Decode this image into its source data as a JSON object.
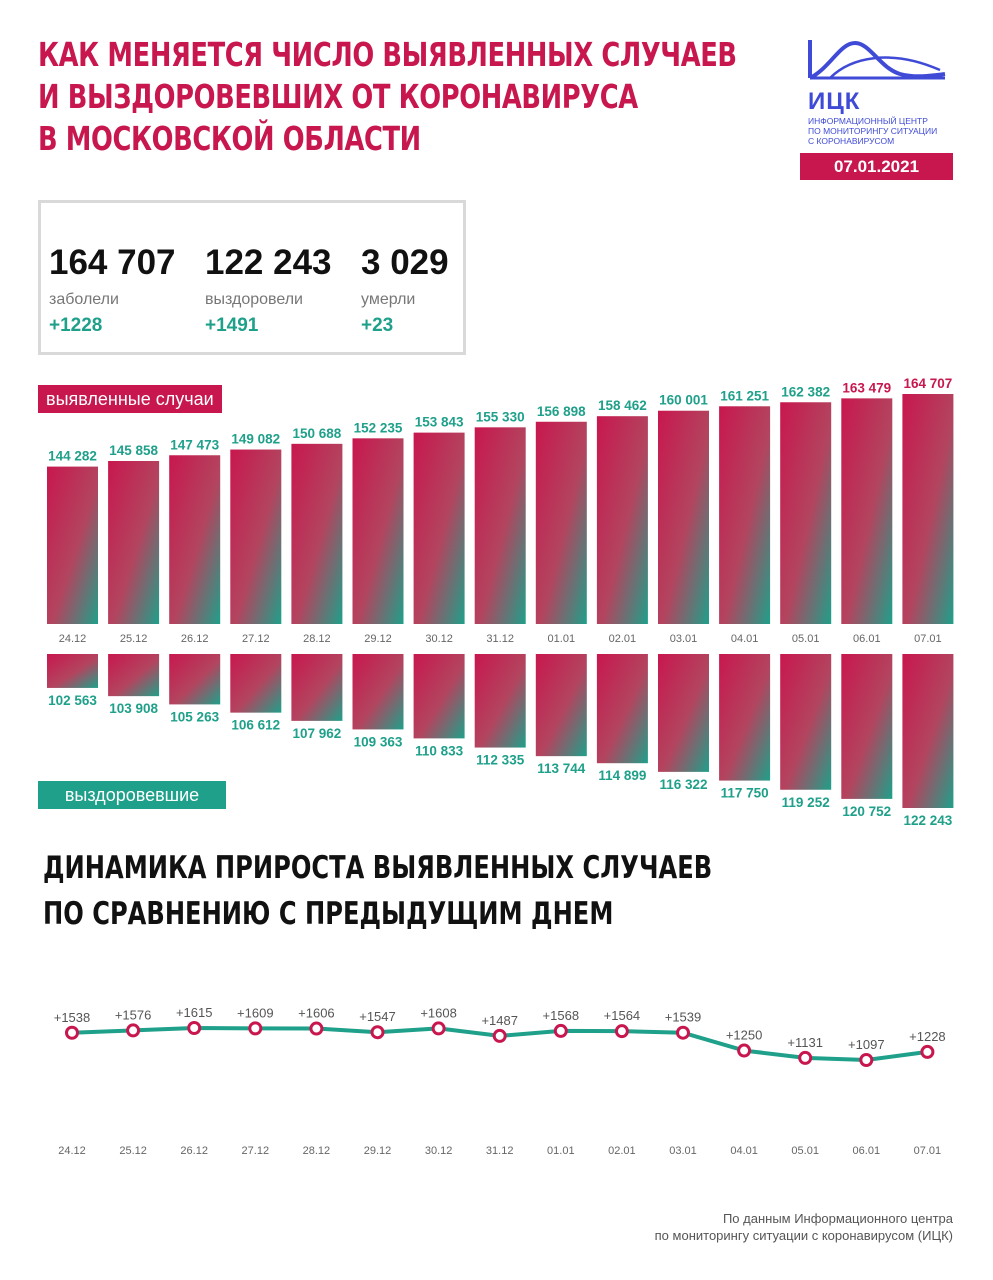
{
  "title": {
    "line1": "КАК МЕНЯЕТСЯ ЧИСЛО ВЫЯВЛЕННЫХ СЛУЧАЕВ",
    "line2": "И ВЫЗДОРОВЕВШИХ ОТ КОРОНАВИРУСА",
    "line3": "В МОСКОВСКОЙ ОБЛАСТИ"
  },
  "logo": {
    "abbr": "ИЦК",
    "sub1": "Информационный центр",
    "sub2": "по мониторингу ситуации",
    "sub3": "с коронавирусом",
    "color": "#3f4bd6"
  },
  "date": "07.01.2021",
  "stats": {
    "infected": {
      "value": "164 707",
      "label": "заболели",
      "delta": "+1228"
    },
    "recovered": {
      "value": "122 243",
      "label": "выздоровели",
      "delta": "+1491"
    },
    "died": {
      "value": "3 029",
      "label": "умерли",
      "delta": "+23"
    }
  },
  "labels": {
    "cases": "выявленные случаи",
    "recovered": "выздоровевшие"
  },
  "subtitle": {
    "line1": "ДИНАМИКА ПРИРОСТА ВЫЯВЛЕННЫХ СЛУЧАЕВ",
    "line2": "ПО СРАВНЕНИЮ С ПРЕДЫДУЩИМ ДНЕМ"
  },
  "source": {
    "line1": "По данным Информационного центра",
    "line2": "по мониторингу ситуации с коронавирусом (ИЦК)"
  },
  "colors": {
    "crimson": "#c8174e",
    "teal": "#1fa08a",
    "label_cases": "#c8174e",
    "label_rec": "#1fa08a"
  },
  "chart_data": [
    {
      "type": "bar",
      "name": "выявленные случаи",
      "categories": [
        "24.12",
        "25.12",
        "26.12",
        "27.12",
        "28.12",
        "29.12",
        "30.12",
        "31.12",
        "01.01",
        "02.01",
        "03.01",
        "04.01",
        "05.01",
        "06.01",
        "07.01"
      ],
      "values": [
        144282,
        145858,
        147473,
        149082,
        150688,
        152235,
        153843,
        155330,
        156898,
        158462,
        160001,
        161251,
        162382,
        163479,
        164707
      ],
      "value_labels": [
        "144 282",
        "145 858",
        "147 473",
        "149 082",
        "150 688",
        "152 235",
        "153 843",
        "155 330",
        "156 898",
        "158 462",
        "160 001",
        "161 251",
        "162 382",
        "163 479",
        "164 707"
      ]
    },
    {
      "type": "bar",
      "name": "выздоровевшие",
      "categories": [
        "24.12",
        "25.12",
        "26.12",
        "27.12",
        "28.12",
        "29.12",
        "30.12",
        "31.12",
        "01.01",
        "02.01",
        "03.01",
        "04.01",
        "05.01",
        "06.01",
        "07.01"
      ],
      "values": [
        102563,
        103908,
        105263,
        106612,
        107962,
        109363,
        110833,
        112335,
        113744,
        114899,
        116322,
        117750,
        119252,
        120752,
        122243
      ],
      "value_labels": [
        "102 563",
        "103 908",
        "105 263",
        "106 612",
        "107 962",
        "109 363",
        "110 833",
        "112 335",
        "113 744",
        "114 899",
        "116 322",
        "117 750",
        "119 252",
        "120 752",
        "122 243"
      ]
    },
    {
      "type": "line",
      "title": "ДИНАМИКА ПРИРОСТА ВЫЯВЛЕННЫХ СЛУЧАЕВ ПО СРАВНЕНИЮ С ПРЕДЫДУЩИМ ДНЕМ",
      "categories": [
        "24.12",
        "25.12",
        "26.12",
        "27.12",
        "28.12",
        "29.12",
        "30.12",
        "31.12",
        "01.01",
        "02.01",
        "03.01",
        "04.01",
        "05.01",
        "06.01",
        "07.01"
      ],
      "values": [
        1538,
        1576,
        1615,
        1609,
        1606,
        1547,
        1608,
        1487,
        1568,
        1564,
        1539,
        1250,
        1131,
        1097,
        1228
      ],
      "value_labels": [
        "+1538",
        "+1576",
        "+1615",
        "+1609",
        "+1606",
        "+1547",
        "+1608",
        "+1487",
        "+1568",
        "+1564",
        "+1539",
        "+1250",
        "+1131",
        "+1097",
        "+1228"
      ]
    }
  ]
}
